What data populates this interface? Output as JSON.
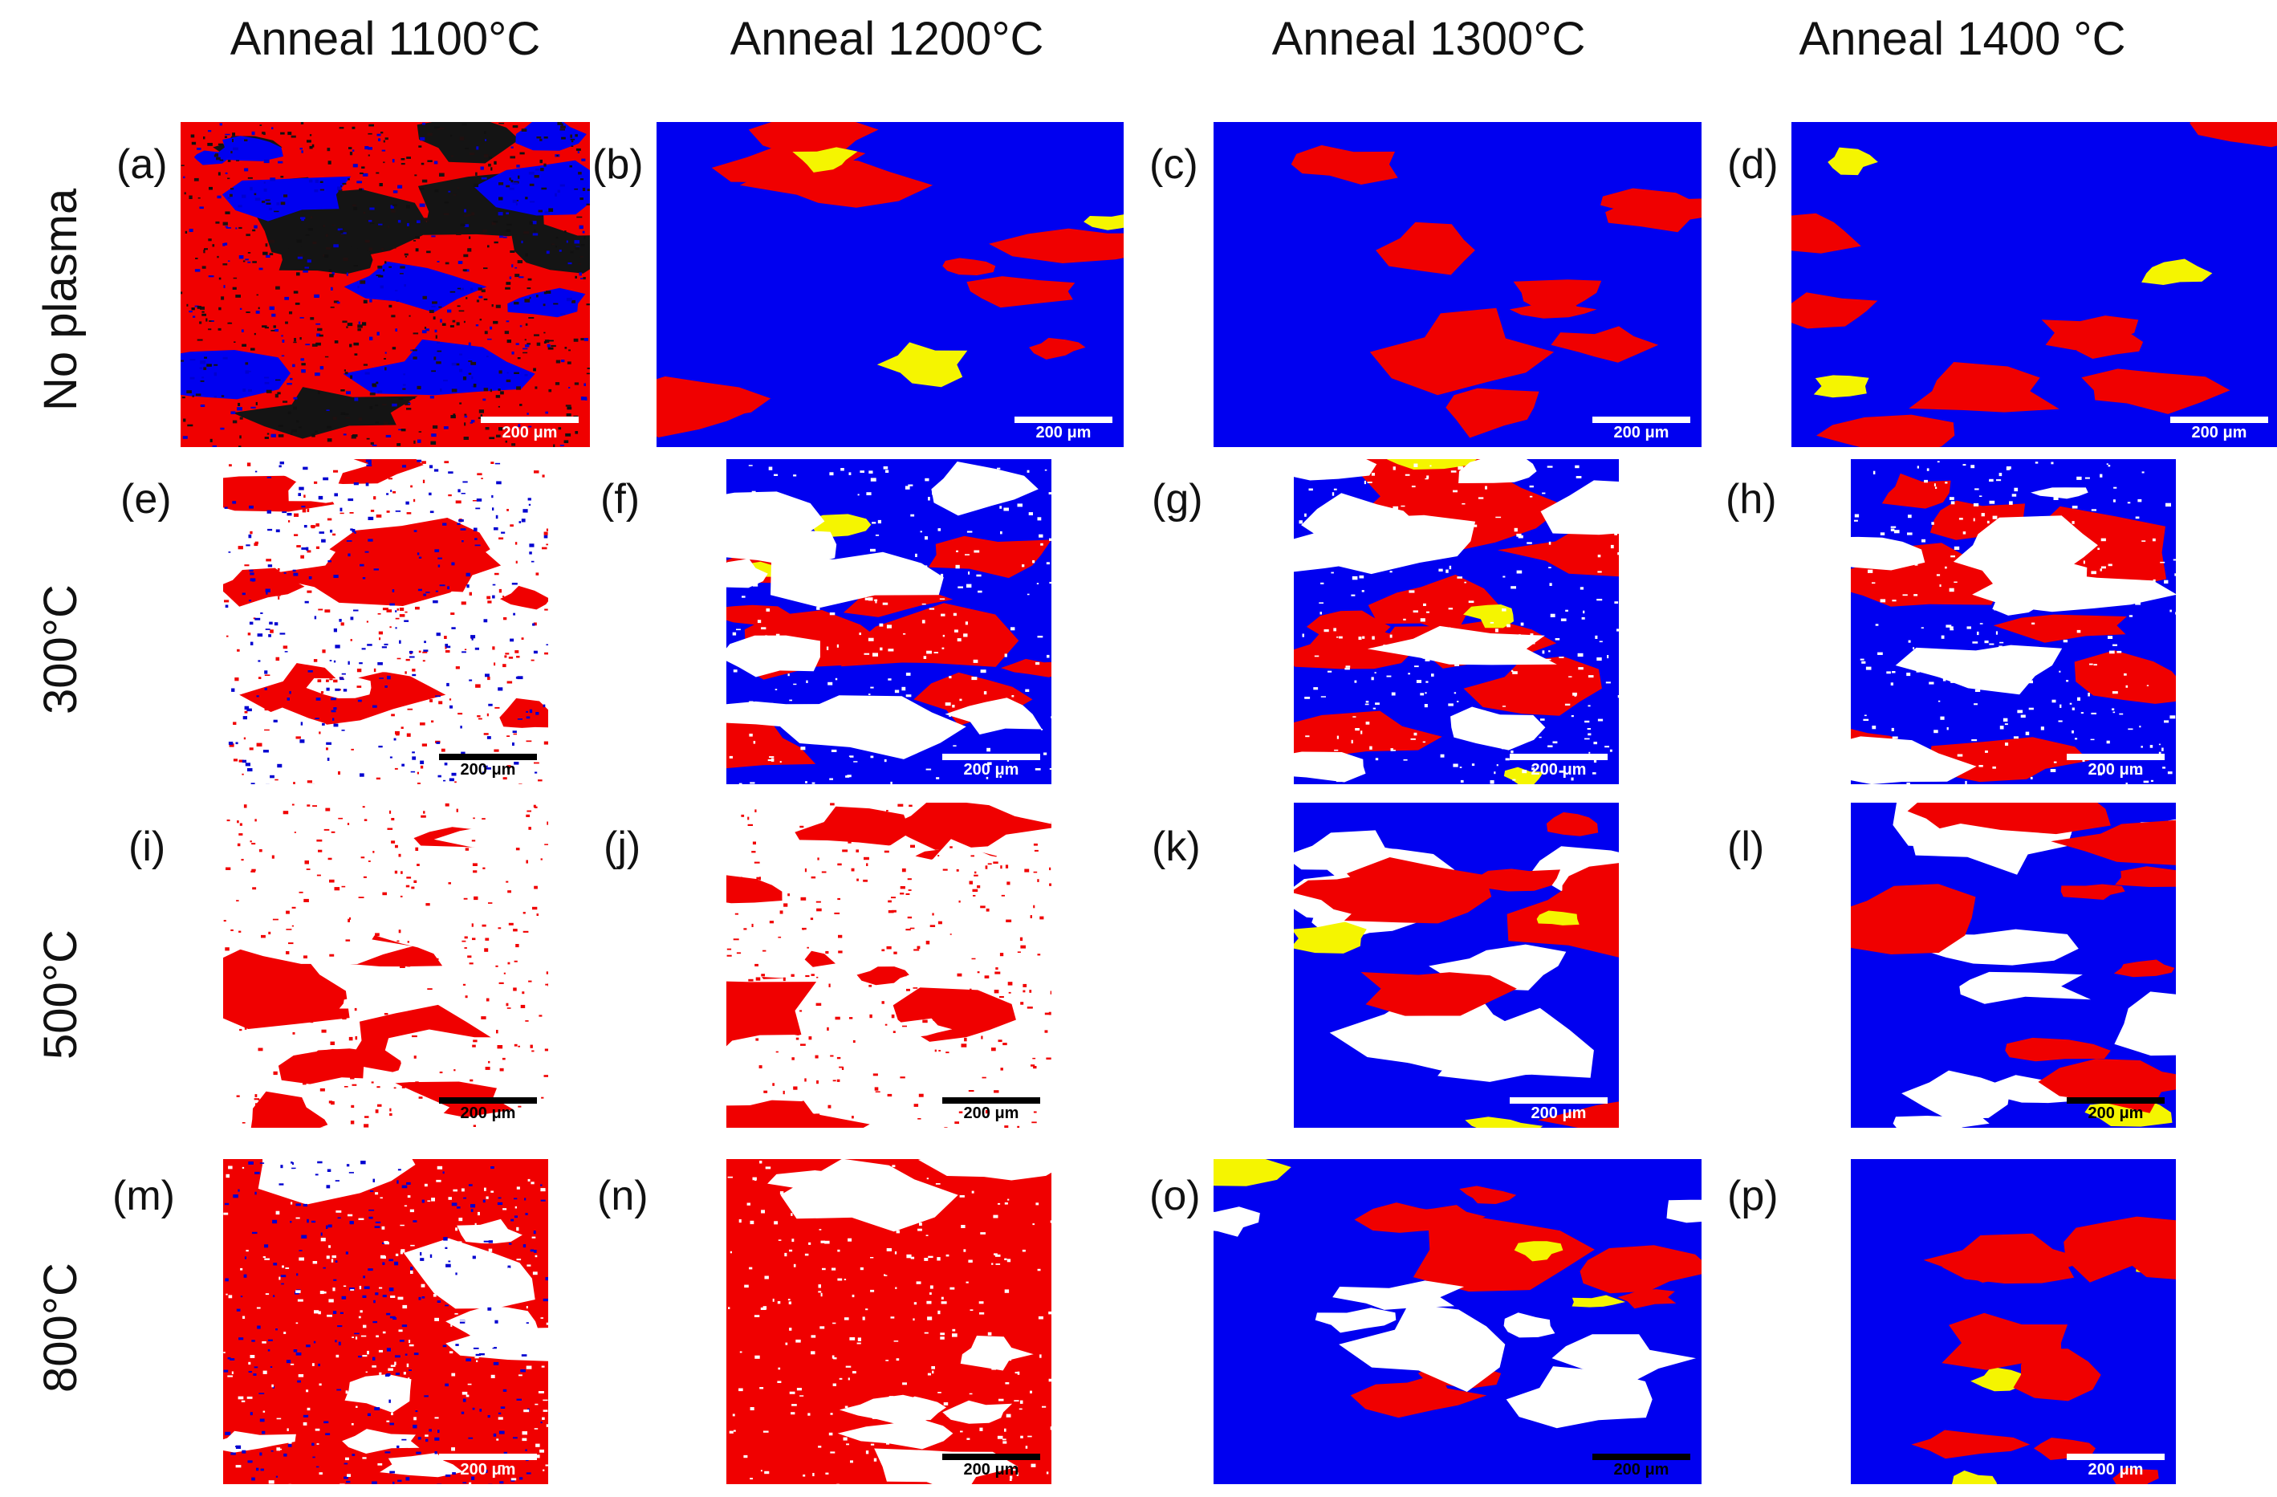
{
  "columns": [
    "Anneal 1100°C",
    "Anneal 1200°C",
    "Anneal 1300°C",
    "Anneal 1400 °C"
  ],
  "rows": [
    "No plasma",
    "300°C",
    "500°C",
    "800°C"
  ],
  "scale_bar": "200 μm",
  "colors": {
    "blue": "#0000f0",
    "red": "#f00000",
    "yellow": "#f5f500",
    "white": "#ffffff",
    "black": "#141414"
  },
  "panels": [
    {
      "letter": "(a)",
      "base": "red",
      "mix": [
        "#201010",
        "#0000d0",
        "#101010"
      ],
      "patches": [
        "black",
        "blue"
      ],
      "bar": "light"
    },
    {
      "letter": "(b)",
      "base": "blue",
      "mix": [],
      "patches": [
        "red",
        "yellow"
      ],
      "bar": "light"
    },
    {
      "letter": "(c)",
      "base": "blue",
      "mix": [],
      "patches": [
        "red"
      ],
      "bar": "light"
    },
    {
      "letter": "(d)",
      "base": "blue",
      "mix": [],
      "patches": [
        "yellow",
        "red"
      ],
      "bar": "light"
    },
    {
      "letter": "(e)",
      "base": "white",
      "mix": [
        "#f00000",
        "#0000d0"
      ],
      "patches": [
        "red",
        "white"
      ],
      "bar": "dark"
    },
    {
      "letter": "(f)",
      "base": "blue",
      "mix": [
        "#ffffff"
      ],
      "patches": [
        "red",
        "yellow",
        "white"
      ],
      "bar": "light"
    },
    {
      "letter": "(g)",
      "base": "blue",
      "mix": [
        "#ffffff"
      ],
      "patches": [
        "red",
        "yellow",
        "white"
      ],
      "bar": "light"
    },
    {
      "letter": "(h)",
      "base": "blue",
      "mix": [
        "#ffffff"
      ],
      "patches": [
        "red",
        "white"
      ],
      "bar": "light"
    },
    {
      "letter": "(i)",
      "base": "white",
      "mix": [
        "#f00000"
      ],
      "patches": [
        "red",
        "white"
      ],
      "bar": "dark"
    },
    {
      "letter": "(j)",
      "base": "white",
      "mix": [
        "#f00000"
      ],
      "patches": [
        "red",
        "white"
      ],
      "bar": "dark"
    },
    {
      "letter": "(k)",
      "base": "blue",
      "mix": [],
      "patches": [
        "white",
        "red",
        "yellow"
      ],
      "bar": "light"
    },
    {
      "letter": "(l)",
      "base": "blue",
      "mix": [],
      "patches": [
        "white",
        "yellow",
        "red"
      ],
      "bar": "dark"
    },
    {
      "letter": "(m)",
      "base": "red",
      "mix": [
        "#0000d0",
        "#ffffff"
      ],
      "patches": [
        "white"
      ],
      "bar": "light"
    },
    {
      "letter": "(n)",
      "base": "red",
      "mix": [
        "#ffffff"
      ],
      "patches": [
        "white"
      ],
      "bar": "dark"
    },
    {
      "letter": "(o)",
      "base": "blue",
      "mix": [],
      "patches": [
        "red",
        "white",
        "yellow"
      ],
      "bar": "dark"
    },
    {
      "letter": "(p)",
      "base": "blue",
      "mix": [],
      "patches": [
        "yellow",
        "red"
      ],
      "bar": "light"
    }
  ]
}
